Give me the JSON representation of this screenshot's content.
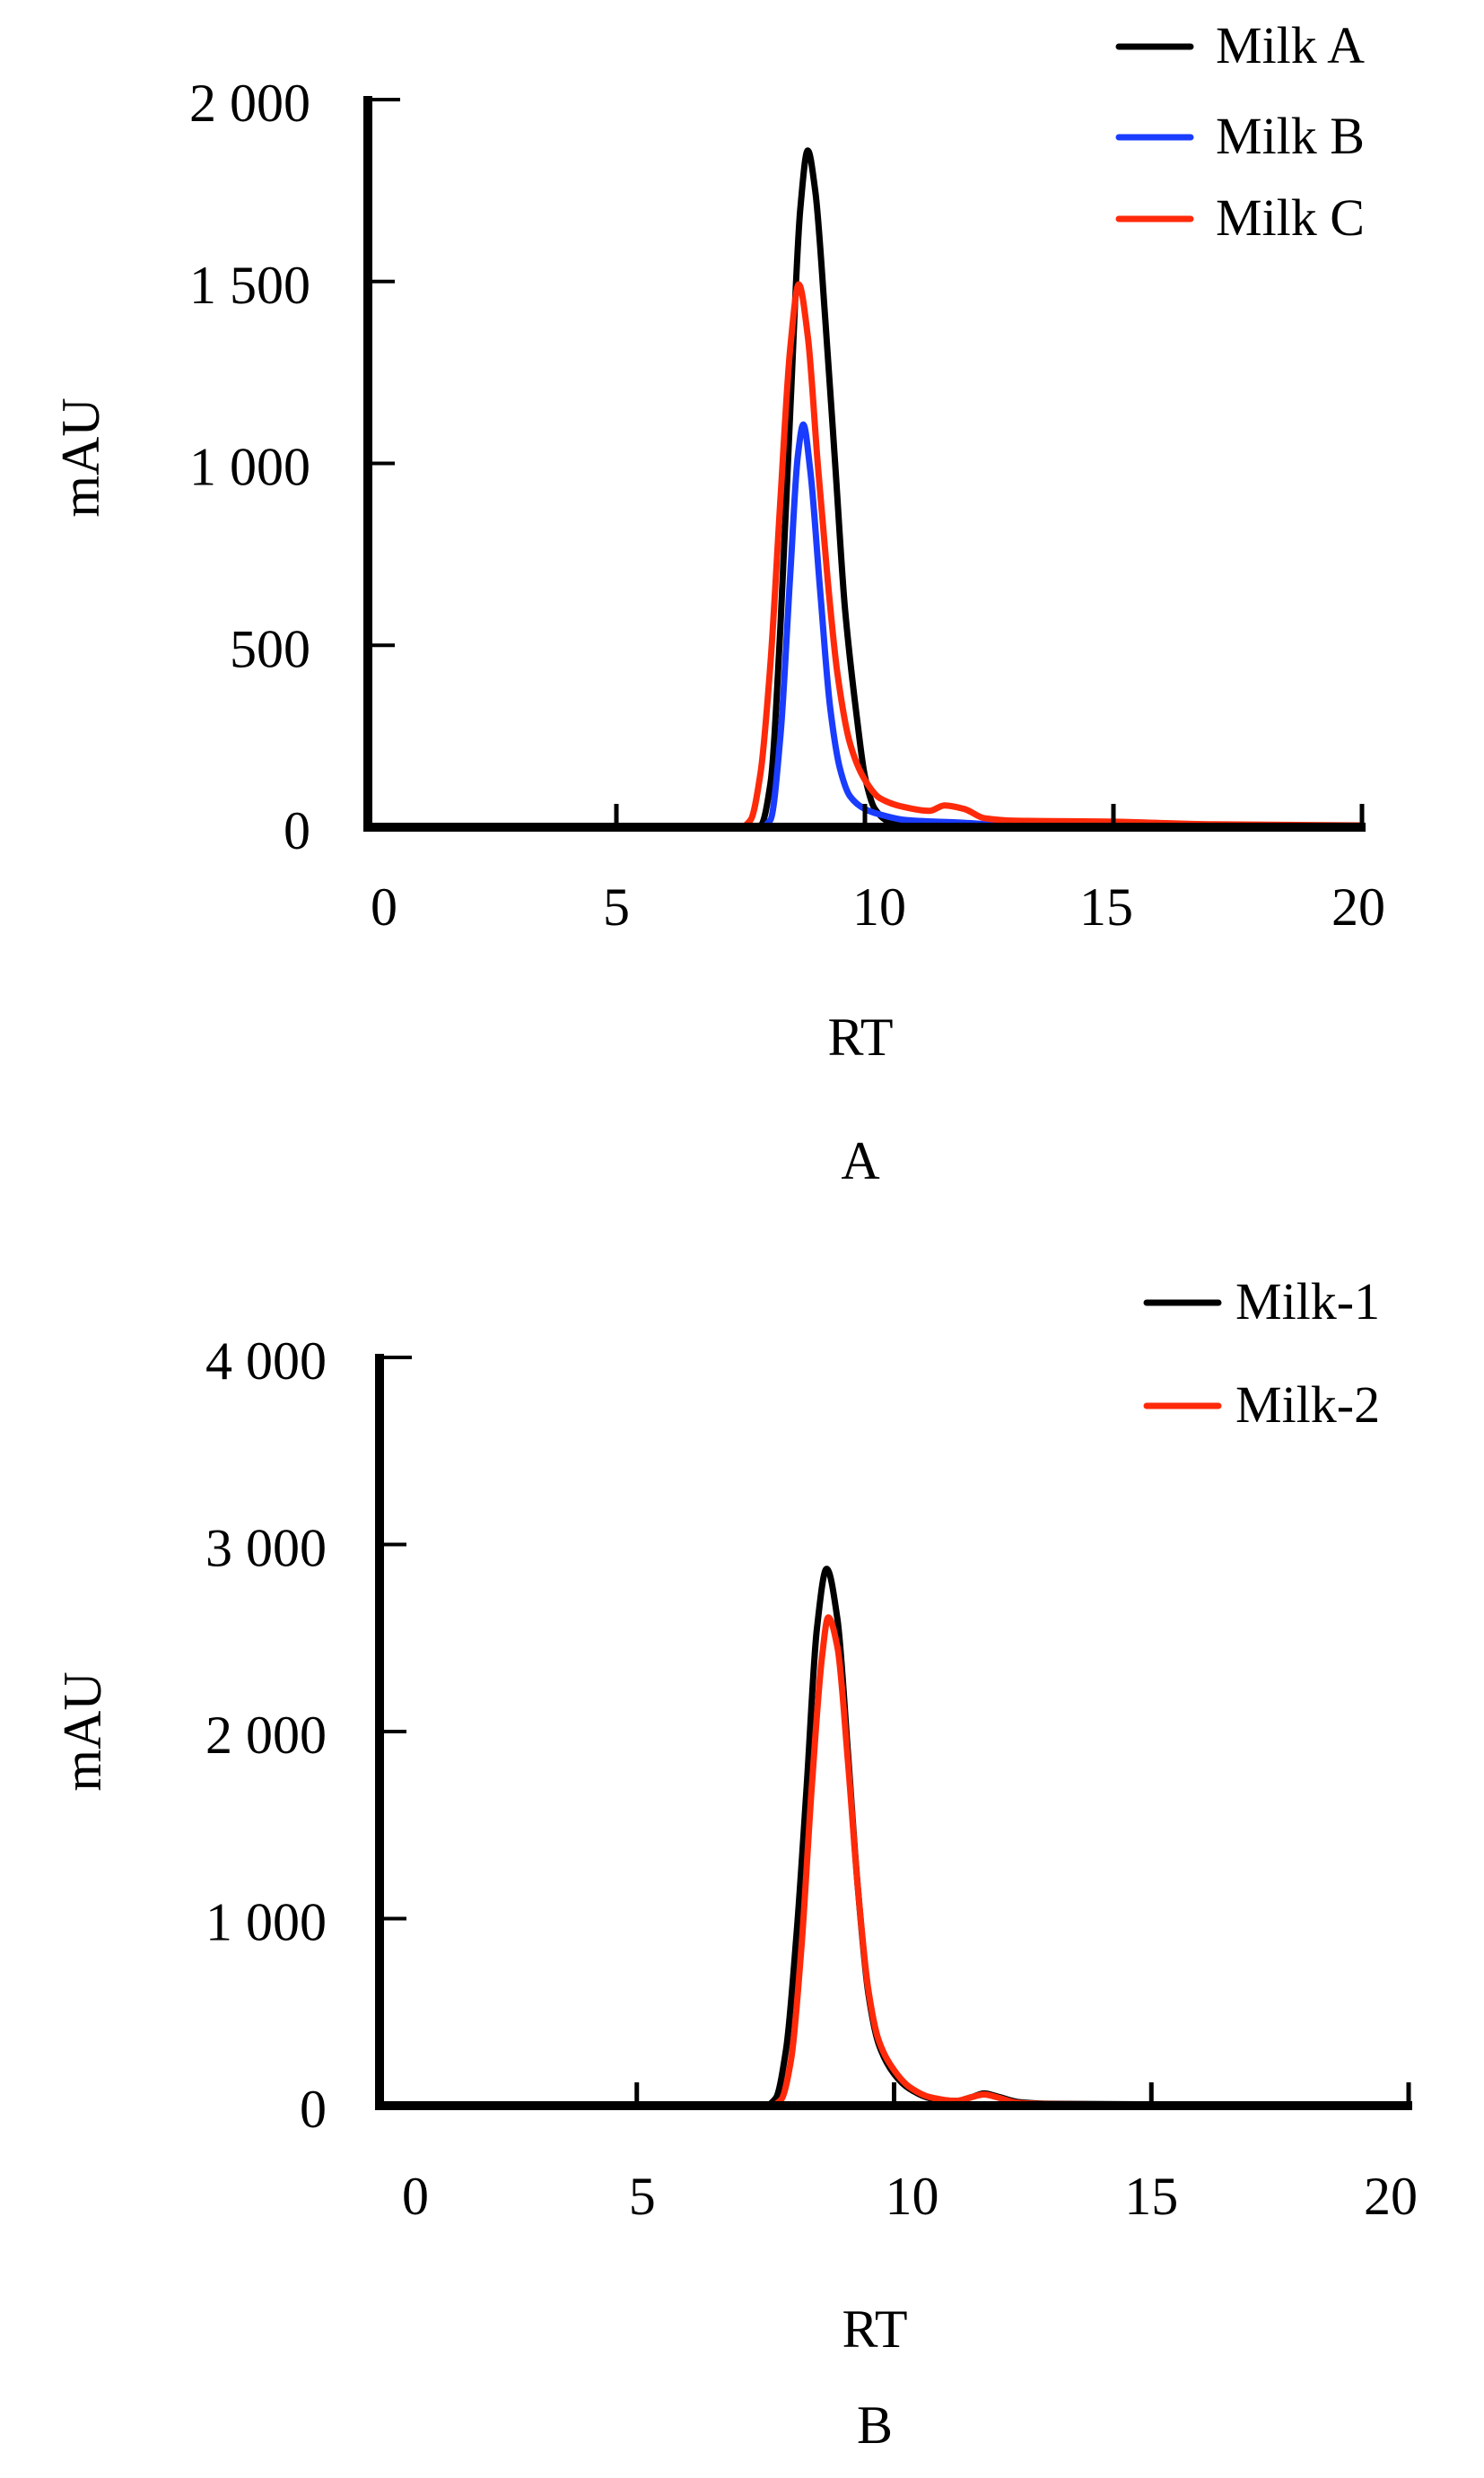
{
  "chart_data": [
    {
      "type": "line",
      "panel_label": "A",
      "xlabel": "RT",
      "ylabel": "mAU",
      "xlim": [
        0,
        20
      ],
      "ylim": [
        0,
        2000
      ],
      "xticks": [
        0,
        5,
        10,
        15,
        20
      ],
      "xtick_labels": [
        "0",
        "5",
        "10",
        "15",
        "20"
      ],
      "yticks": [
        0,
        500,
        1000,
        1500,
        2000
      ],
      "ytick_labels": [
        "0",
        "500",
        "1 000",
        "1 500",
        "2 000"
      ],
      "grid": false,
      "legend_position": "top-right",
      "series": [
        {
          "name": "Milk A",
          "color": "#000000",
          "x": [
            0,
            7.6,
            7.9,
            8.1,
            8.3,
            8.5,
            8.7,
            8.85,
            9.0,
            9.2,
            9.4,
            9.6,
            9.84,
            10.0,
            10.2,
            10.5,
            11,
            12,
            13,
            20
          ],
          "y": [
            0,
            0,
            5,
            120,
            550,
            1150,
            1700,
            1860,
            1750,
            1400,
            1000,
            600,
            300,
            140,
            50,
            15,
            8,
            5,
            2,
            0
          ]
        },
        {
          "name": "Milk B",
          "color": "#1a3cff",
          "x": [
            0,
            7.9,
            8.1,
            8.3,
            8.5,
            8.65,
            8.76,
            8.9,
            9.1,
            9.3,
            9.5,
            9.7,
            10.0,
            10.3,
            10.8,
            12,
            13,
            20
          ],
          "y": [
            0,
            0,
            20,
            250,
            700,
            1020,
            1107,
            980,
            650,
            330,
            160,
            85,
            50,
            35,
            20,
            12,
            5,
            0
          ]
        },
        {
          "name": "Milk C",
          "color": "#ff2a0a",
          "x": [
            0,
            7.5,
            7.7,
            7.9,
            8.1,
            8.3,
            8.5,
            8.67,
            8.85,
            9.05,
            9.25,
            9.45,
            9.7,
            10.0,
            10.3,
            10.8,
            11.3,
            11.6,
            12.0,
            12.4,
            13,
            15,
            17,
            20
          ],
          "y": [
            0,
            0,
            20,
            150,
            450,
            900,
            1320,
            1492,
            1350,
            1000,
            680,
            420,
            230,
            130,
            80,
            55,
            45,
            60,
            50,
            25,
            18,
            15,
            8,
            5
          ]
        }
      ]
    },
    {
      "type": "line",
      "panel_label": "B",
      "xlabel": "RT",
      "ylabel": "mAU",
      "xlim": [
        0,
        20
      ],
      "ylim": [
        0,
        4000
      ],
      "xticks": [
        0,
        5,
        10,
        15,
        20
      ],
      "xtick_labels": [
        "0",
        "5",
        "10",
        "15",
        "20"
      ],
      "yticks": [
        0,
        1000,
        2000,
        3000,
        4000
      ],
      "ytick_labels": [
        "0",
        "1 000",
        "2 000",
        "3 000",
        "4 000"
      ],
      "grid": false,
      "legend_position": "top-right",
      "series": [
        {
          "name": "Milk-1",
          "color": "#000000",
          "x": [
            0,
            7.5,
            7.7,
            7.9,
            8.1,
            8.3,
            8.5,
            8.69,
            8.9,
            9.1,
            9.3,
            9.5,
            9.7,
            10.0,
            10.3,
            10.7,
            11.2,
            11.5,
            11.75,
            12.0,
            12.4,
            13,
            20
          ],
          "y": [
            0,
            0,
            40,
            300,
            900,
            1700,
            2550,
            2870,
            2600,
            1900,
            1150,
            600,
            330,
            170,
            90,
            40,
            25,
            45,
            65,
            50,
            20,
            10,
            0
          ]
        },
        {
          "name": "Milk-2",
          "color": "#ff2a0a",
          "x": [
            0,
            7.6,
            7.8,
            8.0,
            8.2,
            8.4,
            8.6,
            8.72,
            8.9,
            9.1,
            9.3,
            9.5,
            9.7,
            10.0,
            10.3,
            10.7,
            11.2,
            11.5,
            11.75,
            12.0,
            12.4,
            13,
            20
          ],
          "y": [
            0,
            0,
            30,
            250,
            850,
            1700,
            2400,
            2610,
            2450,
            1850,
            1150,
            620,
            350,
            190,
            100,
            45,
            25,
            45,
            60,
            45,
            15,
            8,
            0
          ]
        }
      ]
    }
  ]
}
